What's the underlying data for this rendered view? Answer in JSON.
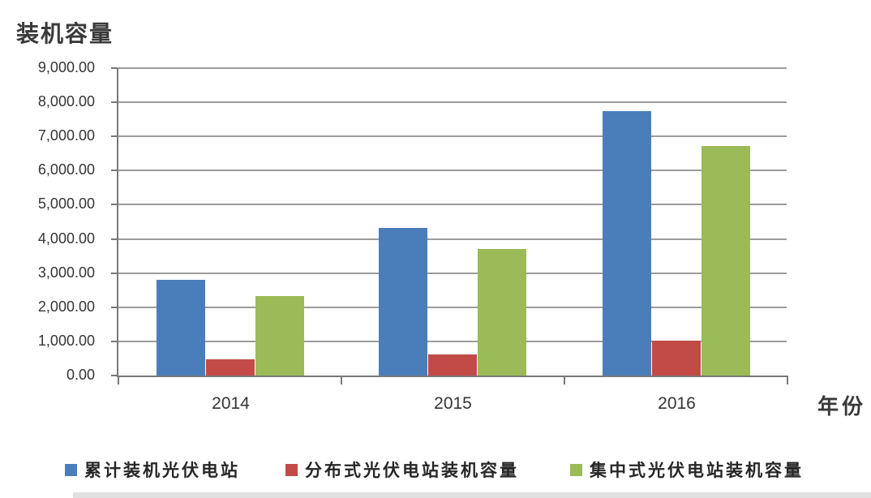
{
  "chart_data": {
    "type": "bar",
    "title": "装机容量",
    "xlabel": "年份",
    "categories": [
      "2014",
      "2015",
      "2016"
    ],
    "series": [
      {
        "id": "cumulative",
        "name": "累计装机光伏电站",
        "color": "#4A7EBB",
        "values": [
          2805,
          4318,
          7742
        ]
      },
      {
        "id": "distributed",
        "name": "分布式光伏电站装机容量",
        "color": "#C24B47",
        "values": [
          467,
          606,
          1032
        ]
      },
      {
        "id": "centralized",
        "name": "集中式光伏电站装机容量",
        "color": "#9ABB57",
        "values": [
          2338,
          3712,
          6710
        ]
      }
    ],
    "ylim": [
      0,
      9000
    ],
    "ytick_step": 1000,
    "ytick_labels": [
      "0.00",
      "1,000.00",
      "2,000.00",
      "3,000.00",
      "4,000.00",
      "5,000.00",
      "6,000.00",
      "7,000.00",
      "8,000.00",
      "9,000.00"
    ],
    "grid": true,
    "legend_position": "bottom"
  },
  "colors": {
    "axis": "#787878",
    "gridline": "#9c9c9c",
    "tick_text": "#353535",
    "title_text": "#3a3a3a",
    "legend_text": "#262626"
  }
}
